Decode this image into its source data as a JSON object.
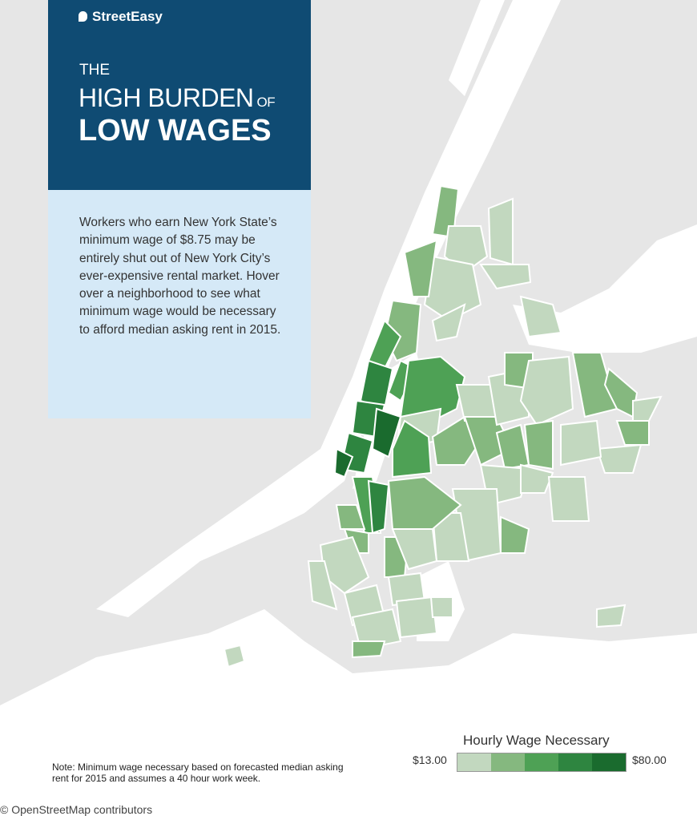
{
  "logo": "StreetEasy",
  "header": {
    "line1": "THE",
    "line2": "HIGH BURDEN",
    "line2_small": "OF",
    "line3": "LOW WAGES"
  },
  "description": "Workers who earn New York State’s minimum wage of $8.75 may be entirely shut out of New York City’s ever-expensive rental market. Hover over a neighborhood to see what minimum wage would be necessary to afford median asking rent in 2015.",
  "legend": {
    "title": "Hourly Wage Necessary",
    "min_label": "$13.00",
    "max_label": "$80.00",
    "colors": [
      "#c2d8bf",
      "#85b87f",
      "#4ea155",
      "#2e8540",
      "#1a6b2e"
    ]
  },
  "note": "Note: Minimum wage necessary based on forecasted median asking rent for 2015 and assumes a 40 hour work week.",
  "attribution": "© OpenStreetMap contributors"
}
